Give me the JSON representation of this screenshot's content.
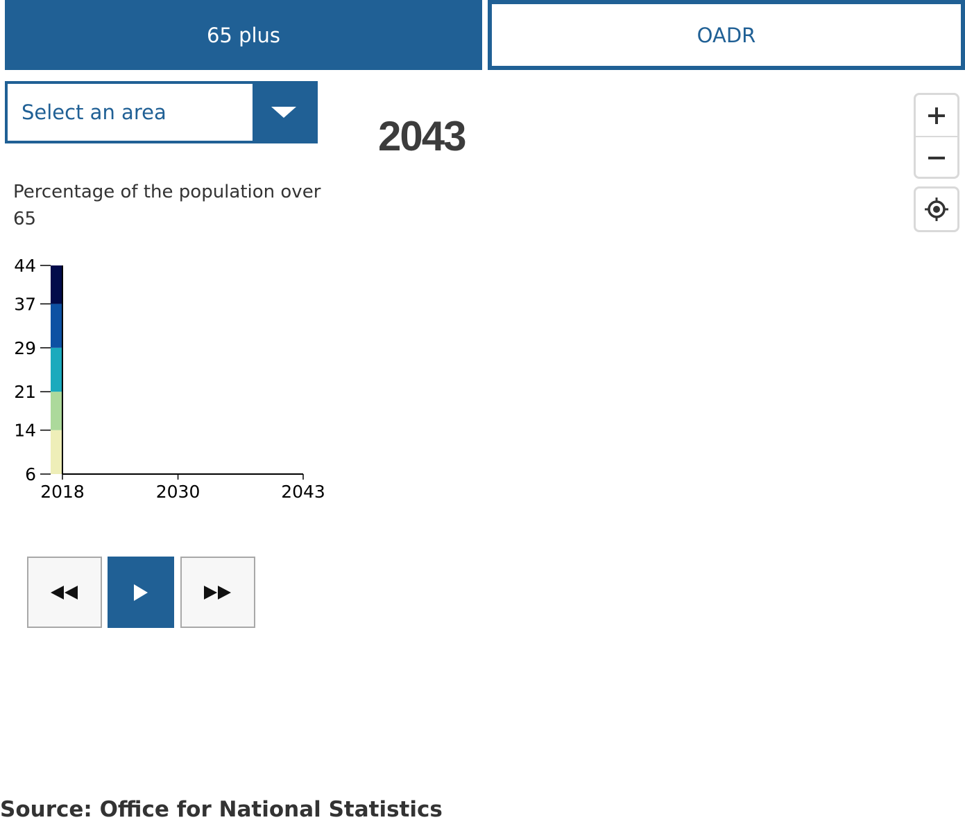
{
  "tabs": [
    {
      "label": "65 plus",
      "active": true
    },
    {
      "label": "OADR",
      "active": false
    }
  ],
  "area_select": {
    "label": "Select an area"
  },
  "current_year": "2043",
  "legend": {
    "title": "Percentage of the population over 65"
  },
  "colors": {
    "brand": "#206095",
    "scale": [
      "#eeeeb8",
      "#acd99b",
      "#1aaabd",
      "#0d51a3",
      "#020b4a"
    ]
  },
  "map_controls": {
    "zoom_in": "+",
    "zoom_out": "−"
  },
  "source": "Source: Office for National Statistics",
  "chart_data": {
    "type": "bar",
    "title": "Percentage of the population over 65",
    "y_ticks": [
      6,
      14,
      21,
      29,
      37,
      44
    ],
    "ylim": [
      6,
      44
    ],
    "x_ticks": [
      2018,
      2030,
      2043
    ],
    "xlim": [
      2018,
      2043
    ],
    "color_breaks": [
      6,
      14,
      21,
      29,
      37,
      44
    ]
  }
}
